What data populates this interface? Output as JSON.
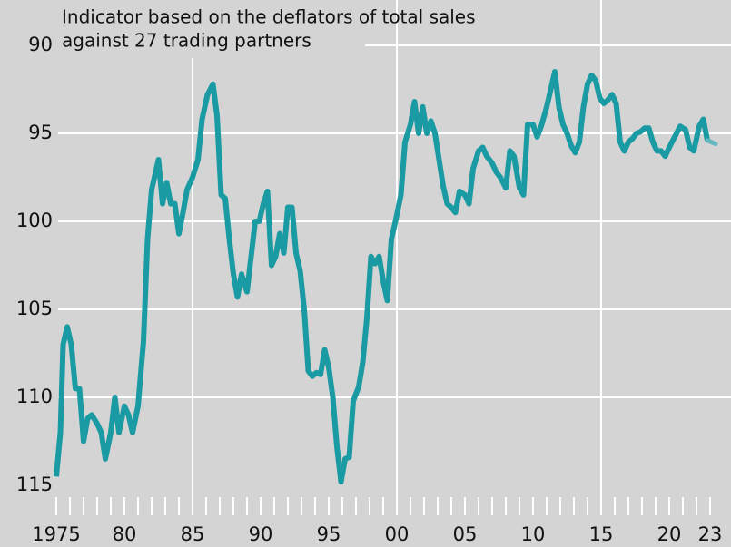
{
  "chart_data": {
    "type": "line",
    "title_lines": [
      "Indicator based on the deflators of total sales",
      "against 27 trading partners"
    ],
    "x": [
      1975.0,
      1975.3,
      1975.5,
      1975.8,
      1976.1,
      1976.4,
      1976.7,
      1977.0,
      1977.3,
      1977.6,
      1978.0,
      1978.3,
      1978.6,
      1979.0,
      1979.3,
      1979.6,
      1980.0,
      1980.3,
      1980.6,
      1981.0,
      1981.4,
      1981.7,
      1982.0,
      1982.5,
      1982.8,
      1983.1,
      1983.4,
      1983.7,
      1984.0,
      1984.3,
      1984.6,
      1985.0,
      1985.4,
      1985.7,
      1986.1,
      1986.5,
      1986.8,
      1987.1,
      1987.4,
      1987.7,
      1988.0,
      1988.3,
      1988.6,
      1989.0,
      1989.3,
      1989.6,
      1989.9,
      1990.2,
      1990.5,
      1990.8,
      1991.1,
      1991.4,
      1991.7,
      1992.0,
      1992.3,
      1992.6,
      1992.9,
      1993.2,
      1993.5,
      1993.8,
      1994.1,
      1994.4,
      1994.7,
      1995.0,
      1995.3,
      1995.6,
      1995.9,
      1996.2,
      1996.5,
      1996.8,
      1997.2,
      1997.5,
      1997.8,
      1998.1,
      1998.4,
      1998.7,
      1999.0,
      1999.3,
      1999.6,
      1999.9,
      2000.3,
      2000.6,
      2001.0,
      2001.3,
      2001.6,
      2001.9,
      2002.2,
      2002.5,
      2002.8,
      2003.1,
      2003.4,
      2003.7,
      2004.0,
      2004.3,
      2004.6,
      2005.0,
      2005.3,
      2005.6,
      2006.0,
      2006.3,
      2006.6,
      2007.0,
      2007.3,
      2007.6,
      2008.0,
      2008.3,
      2008.6,
      2009.0,
      2009.3,
      2009.6,
      2010.0,
      2010.3,
      2010.6,
      2011.0,
      2011.3,
      2011.6,
      2011.9,
      2012.2,
      2012.5,
      2012.8,
      2013.1,
      2013.4,
      2013.7,
      2014.0,
      2014.3,
      2014.6,
      2014.9,
      2015.2,
      2015.5,
      2015.8,
      2016.1,
      2016.4,
      2016.7,
      2017.0,
      2017.3,
      2017.6,
      2017.9,
      2018.2,
      2018.5,
      2018.8,
      2019.1,
      2019.4,
      2019.7,
      2020.0,
      2020.4,
      2020.8,
      2021.2,
      2021.5,
      2021.8,
      2022.2,
      2022.5,
      2022.8,
      2023.4
    ],
    "values": [
      114.5,
      112,
      107,
      106,
      107,
      109.5,
      109.5,
      112.5,
      111.2,
      111,
      111.5,
      112,
      113.5,
      112,
      110,
      112,
      110.5,
      111,
      112,
      110.5,
      106.8,
      101,
      98.2,
      96.5,
      99,
      97.8,
      99,
      99,
      100.7,
      99.5,
      98.2,
      97.5,
      96.5,
      94.2,
      92.8,
      92.2,
      94,
      98.5,
      98.7,
      101,
      103,
      104.3,
      103,
      104,
      102,
      100,
      100,
      99,
      98.3,
      102.5,
      102,
      100.7,
      101.8,
      99.2,
      99.2,
      101.8,
      102.8,
      105,
      108.5,
      108.8,
      108.6,
      108.7,
      107.3,
      108.3,
      110,
      112.8,
      114.8,
      113.5,
      113.4,
      110.2,
      109.4,
      108,
      105.5,
      102,
      102.4,
      102,
      103.4,
      104.5,
      101,
      100,
      98.5,
      95.5,
      94.5,
      93.2,
      95,
      93.5,
      95,
      94.3,
      95,
      96.5,
      98,
      99,
      99.2,
      99.5,
      98.3,
      98.5,
      99,
      97,
      96,
      95.8,
      96.3,
      96.7,
      97.2,
      97.5,
      98.1,
      96,
      96.3,
      98.1,
      98.5,
      94.5,
      94.5,
      95.2,
      94.6,
      93.5,
      92.5,
      91.5,
      93.5,
      94.5,
      95,
      95.7,
      96.1,
      95.5,
      93.5,
      92.2,
      91.7,
      92,
      93,
      93.3,
      93.1,
      92.8,
      93.3,
      95.5,
      96,
      95.5,
      95.3,
      95,
      94.9,
      94.7,
      94.7,
      95.5,
      96,
      96,
      96.3,
      95.8,
      95.2,
      94.6,
      94.8,
      95.8,
      96.0,
      94.6,
      94.2,
      95.4,
      95.6
    ],
    "color": "#1a9aa3",
    "last_point_color": "#62b8be",
    "ylim": [
      90,
      115
    ],
    "yticks": [
      90,
      95,
      100,
      105,
      110,
      115
    ],
    "y_inverted": true,
    "xlim": [
      1975,
      2024.5
    ],
    "xticks": [
      1975,
      {
        "value": 1980,
        "label": "80"
      },
      {
        "value": 1985,
        "label": "85"
      },
      {
        "value": 1990,
        "label": "90"
      },
      {
        "value": 1995,
        "label": "95"
      },
      {
        "value": 2000,
        "label": "00"
      },
      {
        "value": 2005,
        "label": "05"
      },
      {
        "value": 2010,
        "label": "10"
      },
      {
        "value": 2015,
        "label": "15"
      },
      {
        "value": 2020,
        "label": "20"
      },
      {
        "value": 2023,
        "label": "23"
      }
    ],
    "xminor_ticks": [
      1975,
      1976,
      1977,
      1978,
      1979,
      1980,
      1981,
      1982,
      1983,
      1984,
      1985,
      1986,
      1987,
      1988,
      1989,
      1990,
      1991,
      1992,
      1993,
      1994,
      1995,
      1996,
      1997,
      1998,
      1999,
      2000,
      2001,
      2002,
      2003,
      2004,
      2005,
      2006,
      2007,
      2008,
      2009,
      2010,
      2011,
      2012,
      2013,
      2014,
      2015,
      2016,
      2017,
      2018,
      2019,
      2020,
      2021,
      2022,
      2023
    ],
    "xgrid": [
      1985,
      2000,
      2015
    ],
    "grid": true
  }
}
